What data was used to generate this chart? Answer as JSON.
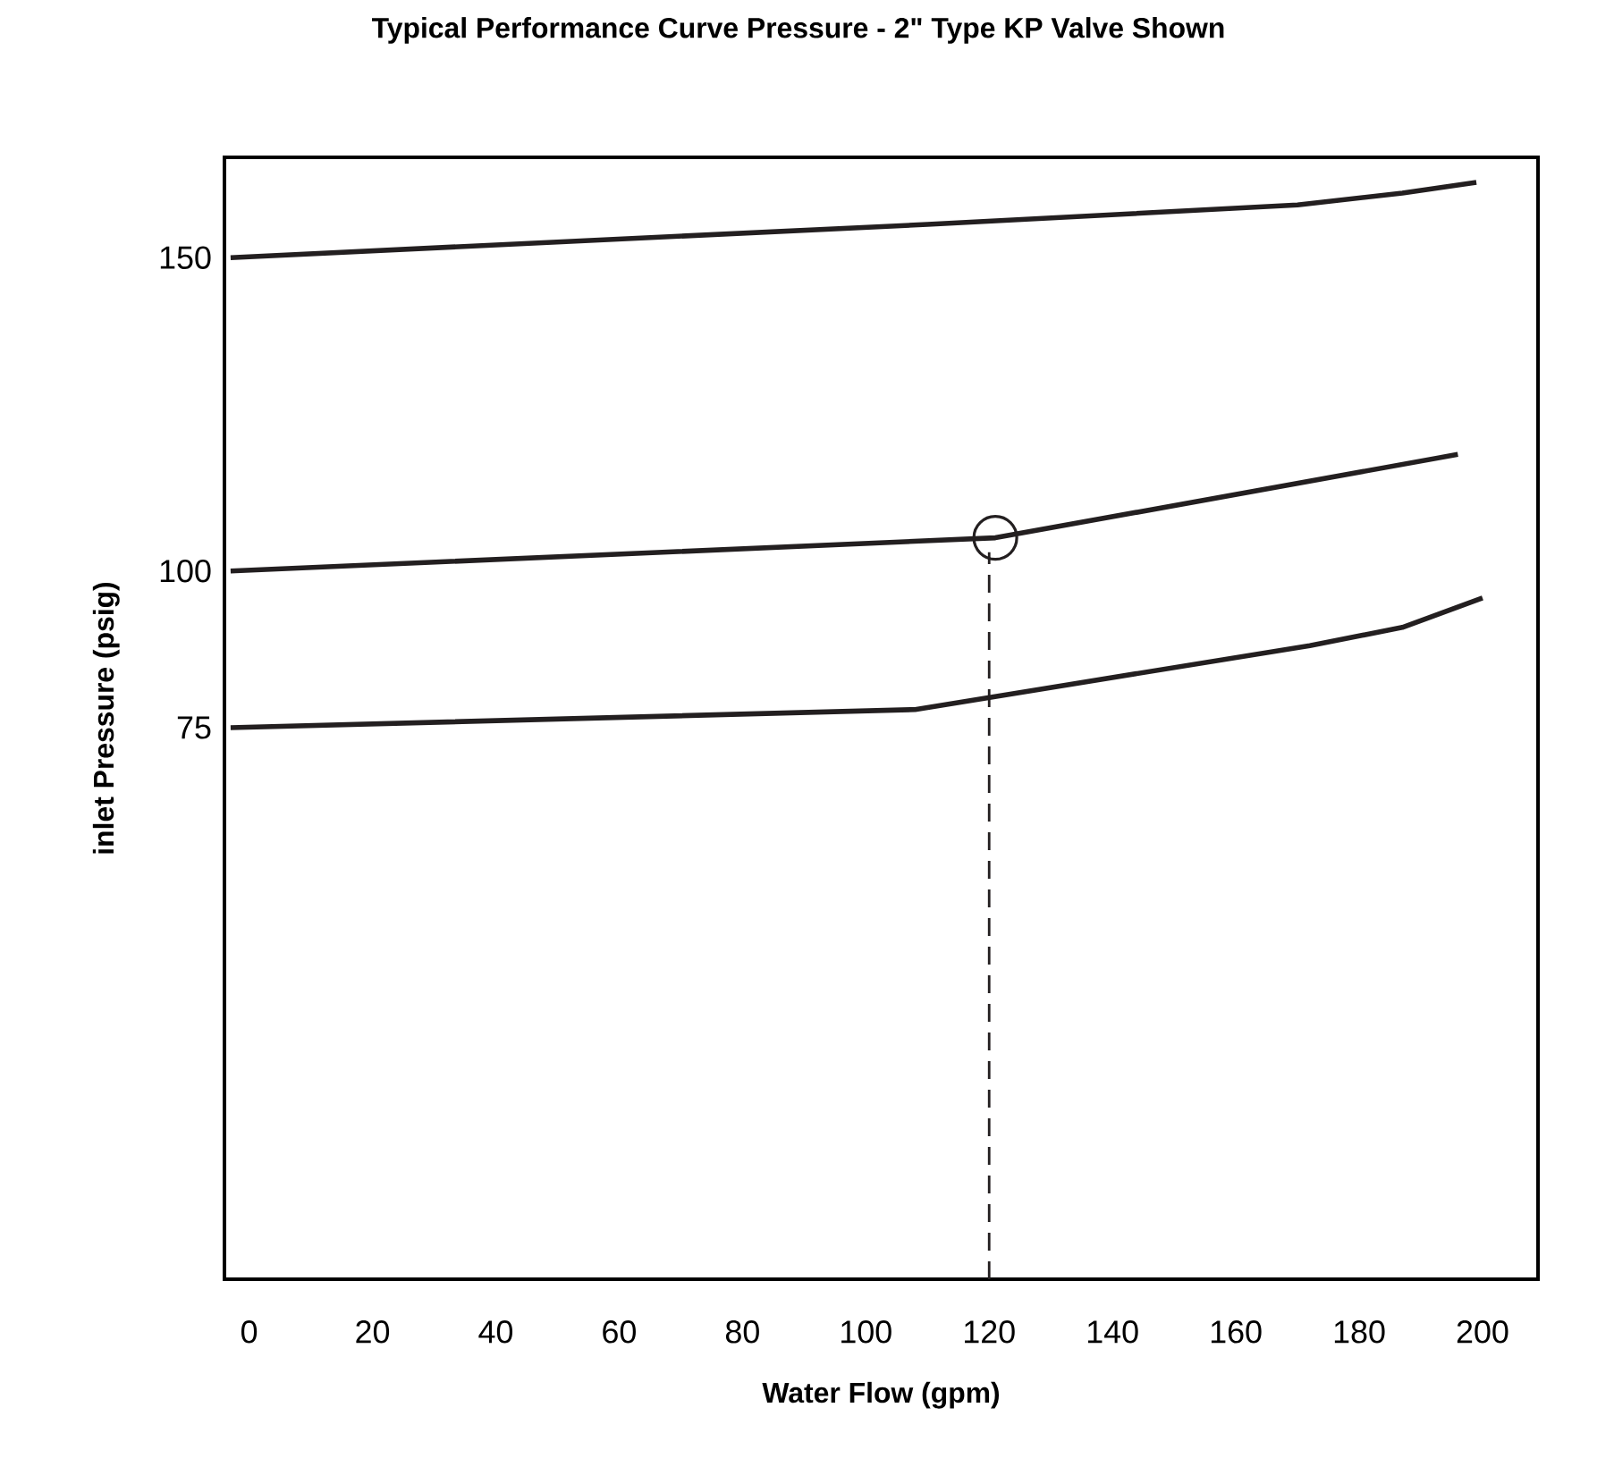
{
  "chart_data": {
    "type": "line",
    "title": "Typical Performance Curve Pressure - 2\" Type KP Valve Shown",
    "xlabel": "Water Flow (gpm)",
    "ylabel": "inlet Pressure (psig)",
    "xlim": [
      -4,
      209
    ],
    "ylim": [
      -13,
      166
    ],
    "xticks": [
      0,
      20,
      40,
      60,
      80,
      100,
      120,
      140,
      160,
      180,
      200
    ],
    "yticks": [
      75,
      100,
      150
    ],
    "grid": false,
    "series": [
      {
        "color": "#231f20",
        "x": [
          -3,
          110,
          170,
          187,
          199
        ],
        "values": [
          150,
          155.3,
          158.4,
          160.3,
          162
        ]
      },
      {
        "color": "#231f20",
        "x": [
          -3,
          121,
          196
        ],
        "values": [
          100,
          105.3,
          118.6
        ]
      },
      {
        "color": "#231f20",
        "x": [
          -3,
          108,
          172,
          187,
          200
        ],
        "values": [
          75,
          77.9,
          88.1,
          91,
          95.7
        ]
      },
      {
        "color": "#231f20",
        "x": [
          120,
          120
        ],
        "values": [
          -13,
          103
        ],
        "line_style": "dashed"
      },
      {
        "type": "scatter",
        "marker": "circle",
        "color": "#231f20",
        "x": [
          121
        ],
        "values": [
          105.3
        ]
      }
    ]
  }
}
